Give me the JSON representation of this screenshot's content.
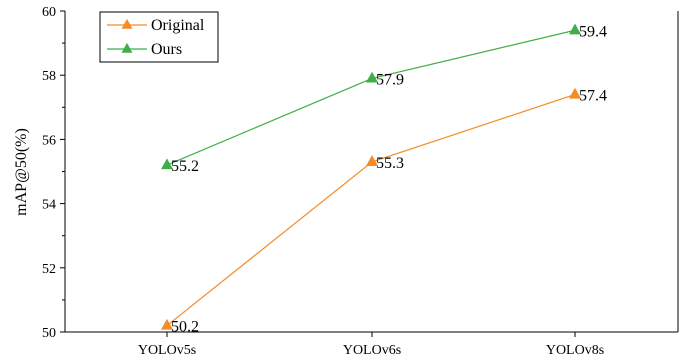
{
  "chart_data": {
    "type": "line",
    "categories": [
      "YOLOv5s",
      "YOLOv6s",
      "YOLOv8s"
    ],
    "series": [
      {
        "name": "Original",
        "values": [
          50.2,
          55.3,
          57.4
        ],
        "color": "#f28c28",
        "marker": "triangle"
      },
      {
        "name": "Ours",
        "values": [
          55.2,
          57.9,
          59.4
        ],
        "color": "#3fae49",
        "marker": "triangle"
      }
    ],
    "ylabel": "mAP@50(%)",
    "xlabel": "",
    "ylim": [
      50,
      60
    ],
    "yticks": [
      50,
      52,
      54,
      56,
      58,
      60
    ],
    "data_labels": true,
    "grid": false,
    "legend_position": "top-left"
  }
}
